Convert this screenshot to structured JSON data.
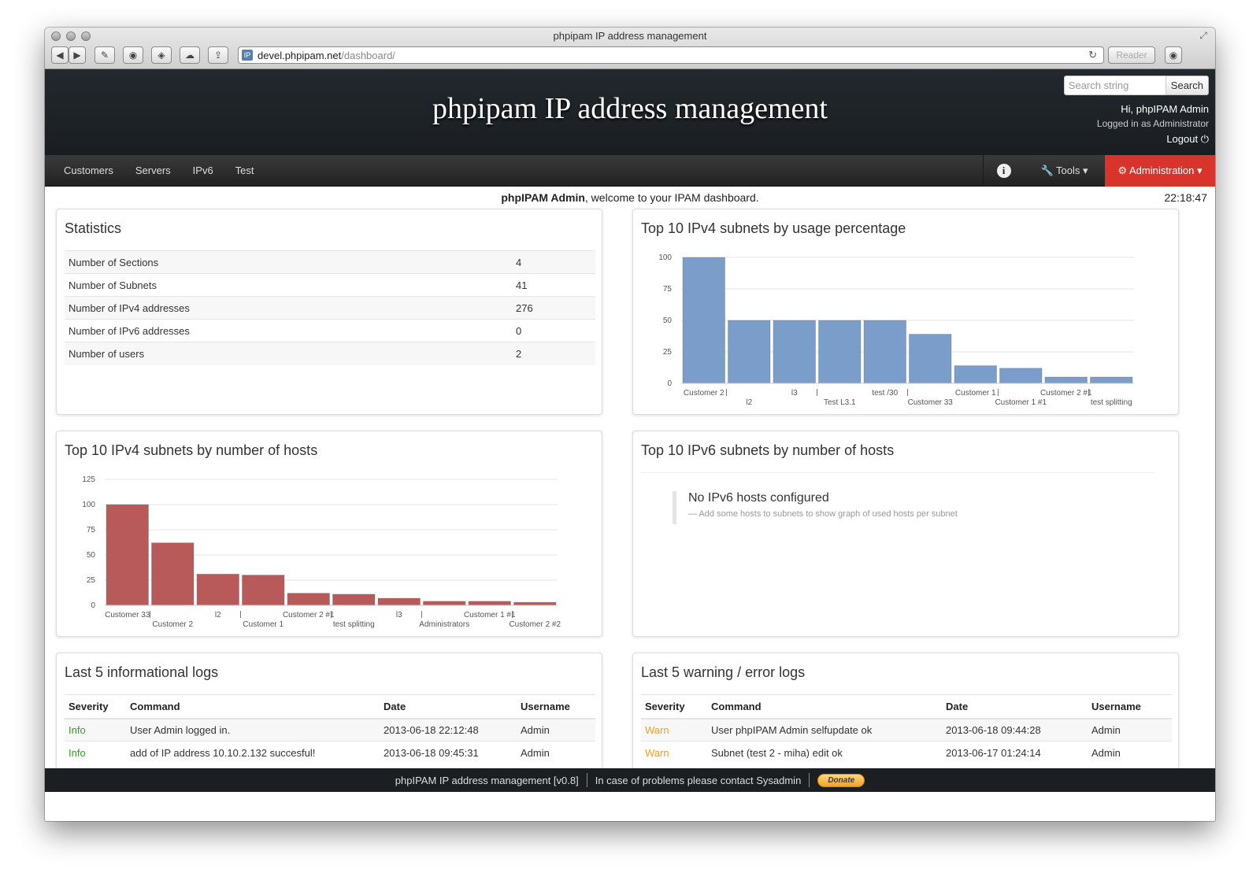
{
  "browser": {
    "window_title": "phpipam IP address management",
    "url_host": "devel.phpipam.net",
    "url_path": "/dashboard/",
    "reader_label": "Reader"
  },
  "header": {
    "title": "phpipam IP address management",
    "search_placeholder": "Search string",
    "search_button": "Search",
    "greeting": "Hi, phpIPAM Admin",
    "logged_in_as": "Logged in as Administrator",
    "logout": "Logout"
  },
  "nav": {
    "items": [
      "Customers",
      "Servers",
      "IPv6",
      "Test"
    ],
    "tools": "Tools",
    "administration": "Administration"
  },
  "welcome": {
    "user": "phpIPAM Admin",
    "text": ", welcome to your IPAM dashboard.",
    "time": "22:18:47"
  },
  "statistics": {
    "title": "Statistics",
    "rows": [
      {
        "label": "Number of Sections",
        "value": "4"
      },
      {
        "label": "Number of Subnets",
        "value": "41"
      },
      {
        "label": "Number of IPv4 addresses",
        "value": "276"
      },
      {
        "label": "Number of IPv6 addresses",
        "value": "0"
      },
      {
        "label": "Number of users",
        "value": "2"
      }
    ]
  },
  "chart_data": [
    {
      "type": "bar",
      "title": "Top 10 IPv4 subnets by usage percentage",
      "categories": [
        "Customer 2",
        "l2",
        "l3",
        "Test L3.1",
        "test /30",
        "Customer 33",
        "Customer 1",
        "Customer 1 #1",
        "Customer 2 #1",
        "test splitting"
      ],
      "values": [
        100,
        50,
        50,
        50,
        50,
        39,
        14,
        12,
        5,
        5
      ],
      "ylim": [
        0,
        100
      ],
      "yticks": [
        0,
        25,
        50,
        75,
        100
      ],
      "grid": true,
      "color": "#7a9dc9"
    },
    {
      "type": "bar",
      "title": "Top 10 IPv4 subnets by number of hosts",
      "categories": [
        "Customer 33",
        "Customer 2",
        "l2",
        "Customer 1",
        "Customer 2 #1",
        "test splitting",
        "l3",
        "Administrators",
        "Customer 1 #1",
        "Customer 2 #2"
      ],
      "values": [
        100,
        62,
        31,
        30,
        12,
        11,
        7,
        4,
        4,
        3
      ],
      "ylim": [
        0,
        125
      ],
      "yticks": [
        0,
        25,
        50,
        75,
        100,
        125
      ],
      "grid": true,
      "color": "#b85a5a"
    }
  ],
  "ipv6_hosts": {
    "title": "Top 10 IPv6 subnets by number of hosts",
    "message": "No IPv6 hosts configured",
    "hint": "— Add some hosts to subnets to show graph of used hosts per subnet"
  },
  "info_logs": {
    "title": "Last 5 informational logs",
    "columns": [
      "Severity",
      "Command",
      "Date",
      "Username"
    ],
    "rows": [
      {
        "severity": "Info",
        "command": "User Admin logged in.",
        "date": "2013-06-18 22:12:48",
        "username": "Admin"
      },
      {
        "severity": "Info",
        "command": "add of IP address 10.10.2.132 succesful!",
        "date": "2013-06-18 09:45:31",
        "username": "Admin"
      }
    ]
  },
  "warn_logs": {
    "title": "Last 5 warning / error logs",
    "columns": [
      "Severity",
      "Command",
      "Date",
      "Username"
    ],
    "rows": [
      {
        "severity": "Warn",
        "command": "User phpIPAM Admin selfupdate ok",
        "date": "2013-06-18 09:44:28",
        "username": "Admin"
      },
      {
        "severity": "Warn",
        "command": "Subnet (test 2 - miha) edit ok",
        "date": "2013-06-17 01:24:14",
        "username": "Admin"
      }
    ]
  },
  "footer": {
    "version": "phpIPAM IP address management [v0.8]",
    "contact": "In case of problems please contact Sysadmin",
    "donate": "Donate"
  }
}
